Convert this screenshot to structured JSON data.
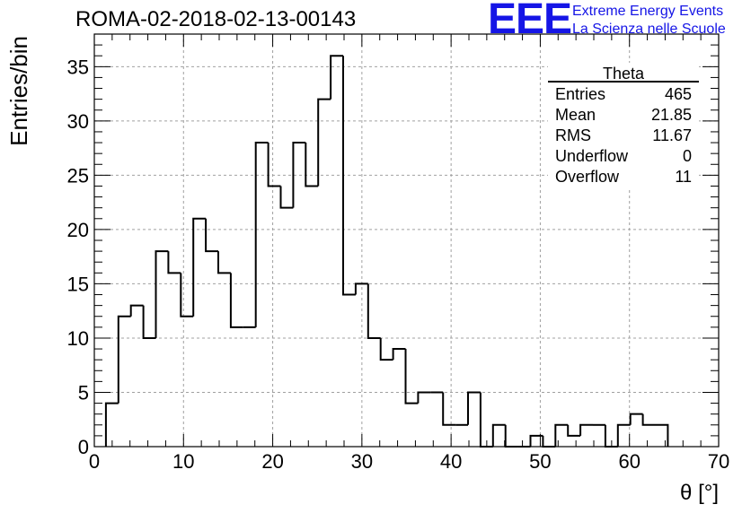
{
  "title": "ROMA-02-2018-02-13-00143",
  "logo": {
    "mark": "EEE",
    "line1": "Extreme Energy Events",
    "line2": "La Scienza nelle Scuole",
    "color": "#1515e6"
  },
  "stats": {
    "name": "Theta",
    "rows": [
      {
        "label": "Entries",
        "value": "465"
      },
      {
        "label": "Mean",
        "value": "21.85"
      },
      {
        "label": "RMS",
        "value": "11.67"
      },
      {
        "label": "Underflow",
        "value": "0"
      },
      {
        "label": "Overflow",
        "value": "11"
      }
    ]
  },
  "chart_data": {
    "type": "bar",
    "style": "step-histogram",
    "xlabel": "θ [°]",
    "ylabel": "Entries/bin",
    "xlim": [
      0,
      70
    ],
    "ylim": [
      0,
      38
    ],
    "xticks": [
      0,
      10,
      20,
      30,
      40,
      50,
      60,
      70
    ],
    "yticks": [
      0,
      5,
      10,
      15,
      20,
      25,
      30,
      35
    ],
    "grid": true,
    "bin_edges": [
      1.3,
      2.7,
      4.1,
      5.5,
      6.9,
      8.3,
      9.7,
      11.1,
      12.5,
      13.9,
      15.3,
      16.7,
      18.1,
      19.5,
      20.9,
      22.3,
      23.7,
      25.1,
      26.5,
      27.9,
      29.3,
      30.7,
      32.1,
      33.5,
      34.9,
      36.3,
      37.7,
      39.1,
      40.5,
      41.9,
      43.3,
      44.7,
      46.1,
      47.5,
      48.9,
      50.3,
      51.7,
      53.1,
      54.5,
      55.9,
      57.3,
      58.7,
      60.1,
      61.5,
      62.9,
      64.3
    ],
    "values": [
      4,
      12,
      13,
      10,
      18,
      16,
      12,
      21,
      18,
      16,
      11,
      11,
      28,
      24,
      22,
      28,
      24,
      32,
      36,
      14,
      15,
      10,
      8,
      9,
      4,
      5,
      5,
      2,
      2,
      5,
      0,
      2,
      0,
      0,
      1,
      0,
      2,
      1,
      2,
      2,
      0,
      2,
      3,
      2,
      2
    ]
  }
}
